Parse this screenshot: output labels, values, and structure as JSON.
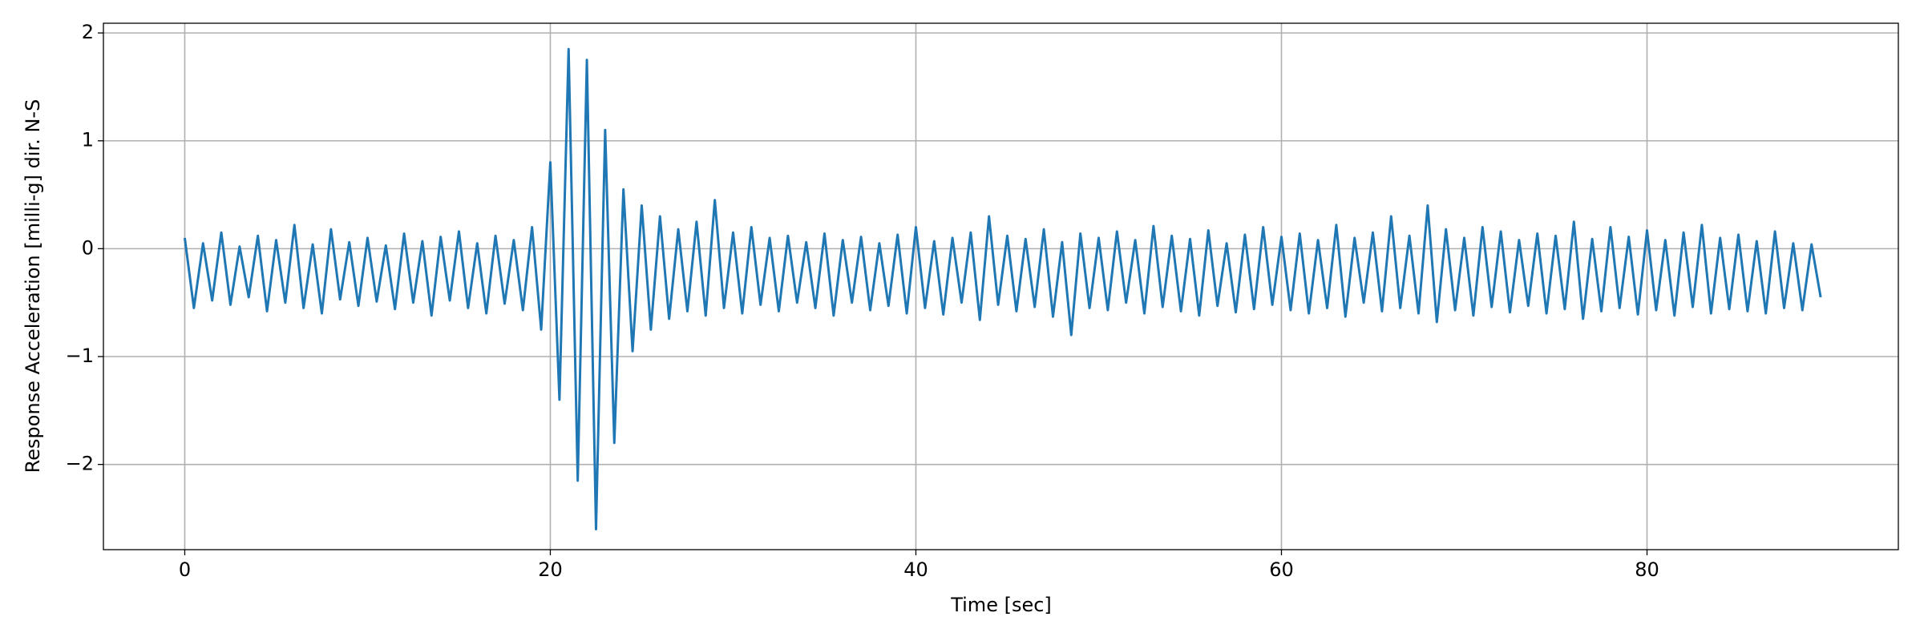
{
  "chart_data": {
    "type": "line",
    "xlabel": "Time [sec]",
    "ylabel": "Response Acceleration [milli-g] dir. N-S",
    "color": "#1f77b4",
    "grid": true,
    "xlim": [
      -4.45,
      93.75
    ],
    "ylim": [
      -2.79,
      2.09
    ],
    "xticks": [
      0,
      20,
      40,
      60,
      80
    ],
    "yticks": [
      {
        "value": -2,
        "label": "−2"
      },
      {
        "value": -1,
        "label": "−1"
      },
      0,
      1,
      2
    ],
    "x": [
      0,
      0.5,
      1,
      1.5,
      2,
      2.5,
      3,
      3.5,
      4,
      4.5,
      5,
      5.5,
      6,
      6.5,
      7,
      7.5,
      8,
      8.5,
      9,
      9.5,
      10,
      10.5,
      11,
      11.5,
      12,
      12.5,
      13,
      13.5,
      14,
      14.5,
      15,
      15.5,
      16,
      16.5,
      17,
      17.5,
      18,
      18.5,
      19,
      19.5,
      20,
      20.5,
      21,
      21.5,
      22,
      22.5,
      23,
      23.5,
      24,
      24.5,
      25,
      25.5,
      26,
      26.5,
      27,
      27.5,
      28,
      28.5,
      29,
      29.5,
      30,
      30.5,
      31,
      31.5,
      32,
      32.5,
      33,
      33.5,
      34,
      34.5,
      35,
      35.5,
      36,
      36.5,
      37,
      37.5,
      38,
      38.5,
      39,
      39.5,
      40,
      40.5,
      41,
      41.5,
      42,
      42.5,
      43,
      43.5,
      44,
      44.5,
      45,
      45.5,
      46,
      46.5,
      47,
      47.5,
      48,
      48.5,
      49,
      49.5,
      50,
      50.5,
      51,
      51.5,
      52,
      52.5,
      53,
      53.5,
      54,
      54.5,
      55,
      55.5,
      56,
      56.5,
      57,
      57.5,
      58,
      58.5,
      59,
      59.5,
      60,
      60.5,
      61,
      61.5,
      62,
      62.5,
      63,
      63.5,
      64,
      64.5,
      65,
      65.5,
      66,
      66.5,
      67,
      67.5,
      68,
      68.5,
      69,
      69.5,
      70,
      70.5,
      71,
      71.5,
      72,
      72.5,
      73,
      73.5,
      74,
      74.5,
      75,
      75.5,
      76,
      76.5,
      77,
      77.5,
      78,
      78.5,
      79,
      79.5,
      80,
      80.5,
      81,
      81.5,
      82,
      82.5,
      83,
      83.5,
      84,
      84.5,
      85,
      85.5,
      86,
      86.5,
      87,
      87.5,
      88,
      88.5,
      89,
      89.5
    ],
    "values": [
      0.1,
      -0.55,
      0.05,
      -0.48,
      0.15,
      -0.52,
      0.02,
      -0.45,
      0.12,
      -0.58,
      0.08,
      -0.5,
      0.22,
      -0.55,
      0.04,
      -0.6,
      0.18,
      -0.47,
      0.06,
      -0.53,
      0.1,
      -0.49,
      0.03,
      -0.56,
      0.14,
      -0.5,
      0.07,
      -0.62,
      0.11,
      -0.48,
      0.16,
      -0.55,
      0.05,
      -0.6,
      0.12,
      -0.51,
      0.08,
      -0.57,
      0.2,
      -0.75,
      0.8,
      -1.4,
      1.85,
      -2.15,
      1.75,
      -2.6,
      1.1,
      -1.8,
      0.55,
      -0.95,
      0.4,
      -0.75,
      0.3,
      -0.65,
      0.18,
      -0.58,
      0.25,
      -0.62,
      0.45,
      -0.55,
      0.15,
      -0.6,
      0.2,
      -0.52,
      0.1,
      -0.58,
      0.12,
      -0.5,
      0.06,
      -0.55,
      0.14,
      -0.62,
      0.08,
      -0.5,
      0.11,
      -0.57,
      0.05,
      -0.53,
      0.13,
      -0.6,
      0.2,
      -0.55,
      0.07,
      -0.61,
      0.1,
      -0.5,
      0.15,
      -0.66,
      0.3,
      -0.52,
      0.12,
      -0.58,
      0.09,
      -0.54,
      0.18,
      -0.63,
      0.06,
      -0.8,
      0.14,
      -0.55,
      0.1,
      -0.57,
      0.16,
      -0.5,
      0.08,
      -0.6,
      0.21,
      -0.54,
      0.12,
      -0.58,
      0.09,
      -0.62,
      0.17,
      -0.53,
      0.05,
      -0.59,
      0.13,
      -0.56,
      0.2,
      -0.52,
      0.11,
      -0.57,
      0.14,
      -0.6,
      0.08,
      -0.55,
      0.22,
      -0.63,
      0.1,
      -0.5,
      0.15,
      -0.58,
      0.3,
      -0.55,
      0.12,
      -0.6,
      0.4,
      -0.68,
      0.18,
      -0.57,
      0.1,
      -0.62,
      0.2,
      -0.54,
      0.16,
      -0.59,
      0.08,
      -0.53,
      0.14,
      -0.6,
      0.12,
      -0.56,
      0.25,
      -0.65,
      0.09,
      -0.58,
      0.2,
      -0.55,
      0.11,
      -0.61,
      0.17,
      -0.57,
      0.08,
      -0.62,
      0.15,
      -0.54,
      0.22,
      -0.6,
      0.1,
      -0.56,
      0.13,
      -0.58,
      0.07,
      -0.6,
      0.16,
      -0.55,
      0.05,
      -0.57,
      0.04,
      -0.45
    ]
  }
}
